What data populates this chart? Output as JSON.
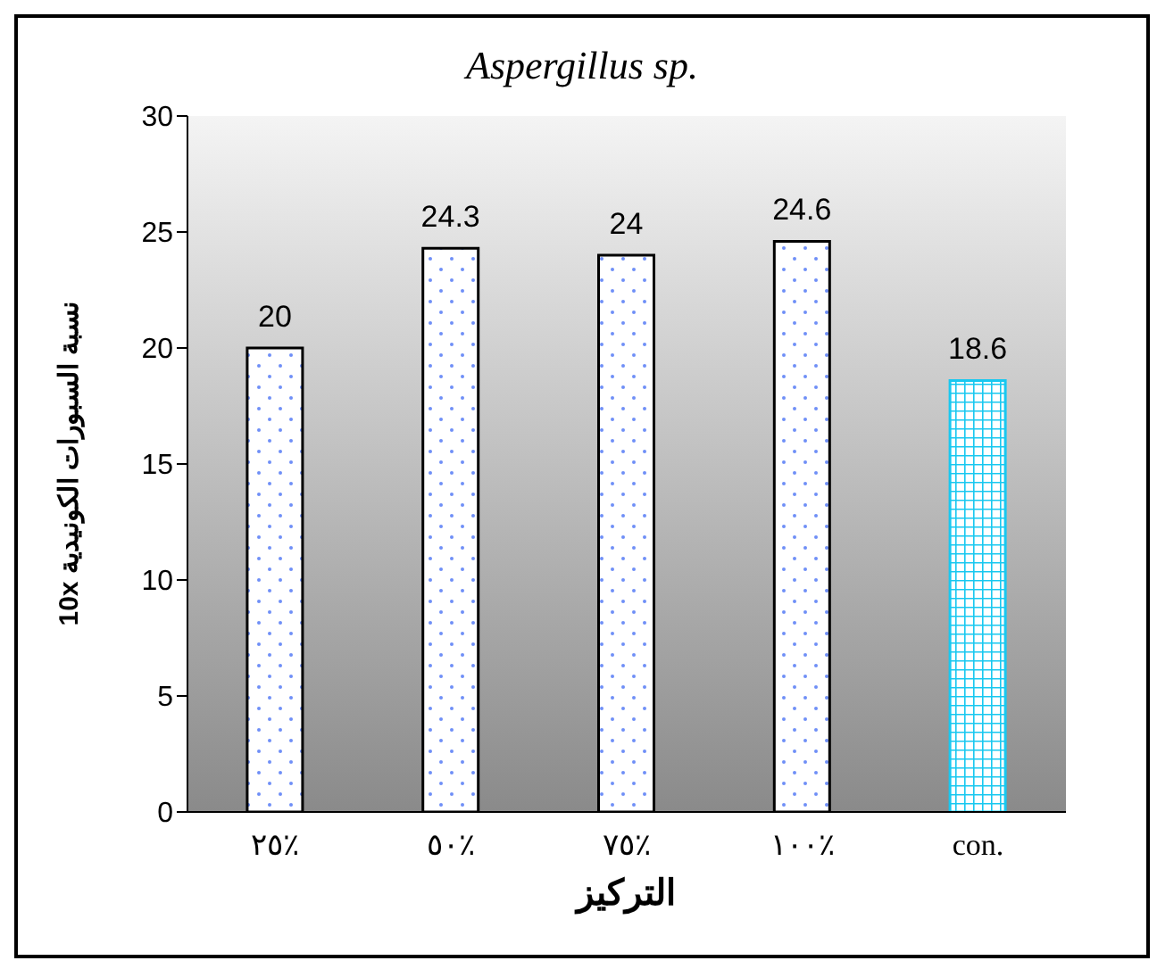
{
  "chart_data": {
    "type": "bar",
    "title": "Aspergillus sp.",
    "xlabel": "التركيز",
    "ylabel": "نسبة السبورات الكونيدية 10x",
    "categories": [
      "٢٥٪",
      "٥٠٪",
      "٧٥٪",
      "١٠٠٪",
      "con."
    ],
    "values": [
      20,
      24.3,
      24,
      24.6,
      18.6
    ],
    "ylim": [
      0,
      30
    ],
    "yticks": [
      0,
      5,
      10,
      15,
      20,
      25,
      30
    ],
    "data_labels": true
  }
}
